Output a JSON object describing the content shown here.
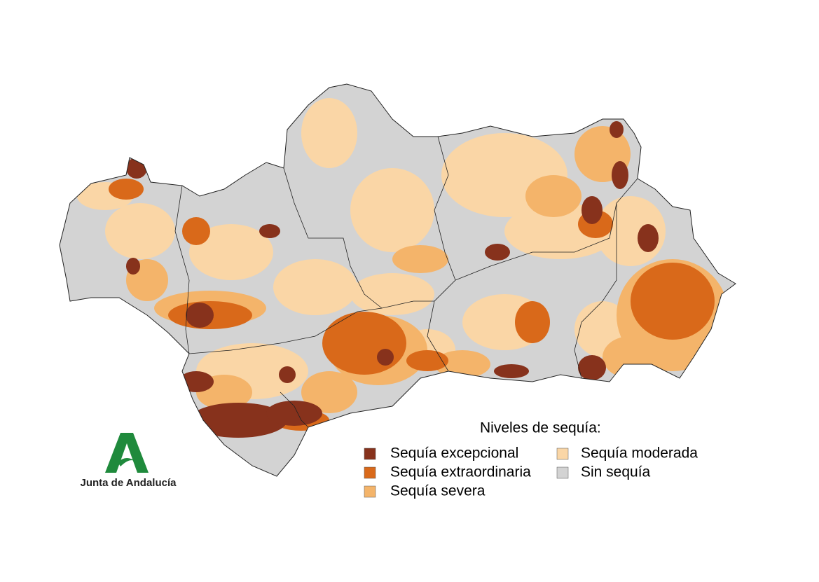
{
  "legend": {
    "title": "Niveles de sequía:",
    "items": [
      {
        "label": "Sequía excepcional",
        "color": "#87321c"
      },
      {
        "label": "Sequía extraordinaria",
        "color": "#d9691a"
      },
      {
        "label": "Sequía severa",
        "color": "#f4b46a"
      },
      {
        "label": "Sequía moderada",
        "color": "#fad6a6"
      },
      {
        "label": "Sin sequía",
        "color": "#d3d3d3"
      }
    ]
  },
  "logo": {
    "text": "Junta de Andalucía"
  }
}
